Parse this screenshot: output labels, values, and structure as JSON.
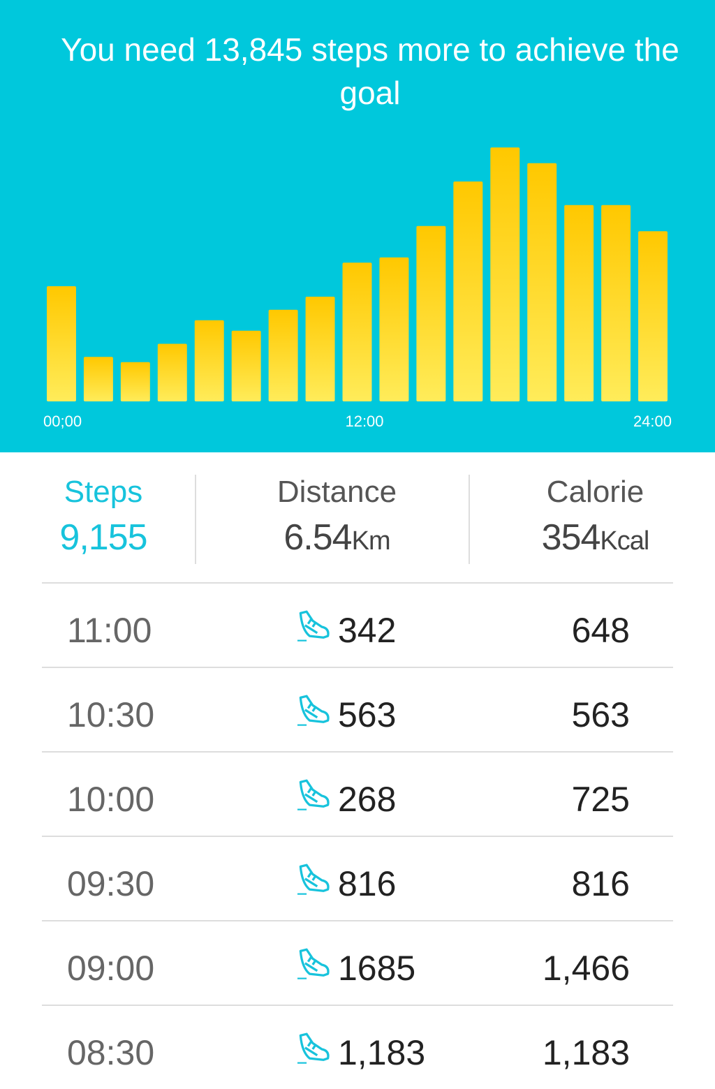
{
  "header": {
    "message": "You need 13,845 steps more to achieve the goal"
  },
  "chart_data": {
    "type": "bar",
    "categories": [
      "00;00",
      null,
      null,
      null,
      null,
      null,
      null,
      null,
      "12:00",
      null,
      null,
      null,
      null,
      null,
      null,
      null,
      "24:00"
    ],
    "values": [
      44,
      17,
      15,
      22,
      31,
      27,
      35,
      40,
      53,
      55,
      67,
      84,
      97,
      91,
      75,
      75,
      65
    ],
    "ylim": [
      0,
      100
    ],
    "color": "#ffd21e"
  },
  "summary": [
    {
      "label": "Steps",
      "value": "9,155"
    },
    {
      "label": "Distance",
      "value": "6.54",
      "unit": "Km"
    },
    {
      "label": "Calorie",
      "value": "354",
      "unit": "Kcal"
    }
  ],
  "rows": [
    [
      "11:00",
      "342",
      "648"
    ],
    [
      "10:30",
      "563",
      "563"
    ],
    [
      "10:00",
      "268",
      "725"
    ],
    [
      "09:30",
      "816",
      "816"
    ],
    [
      "09:00",
      "1685",
      "1,466"
    ],
    [
      "08:30",
      "1,183",
      "1,183"
    ]
  ]
}
